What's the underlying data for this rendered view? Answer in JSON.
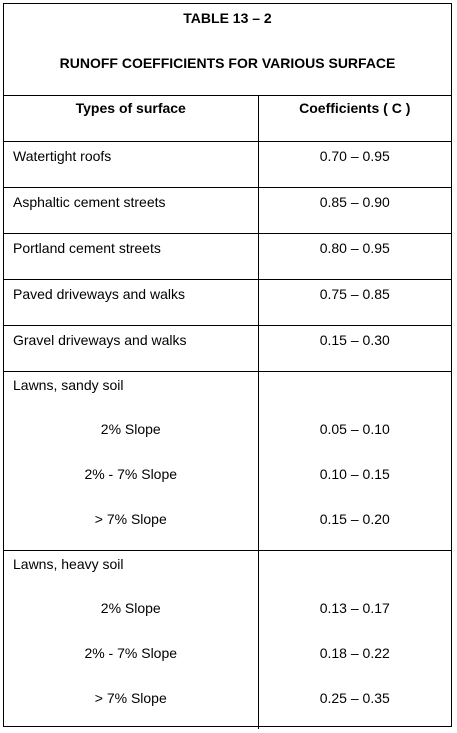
{
  "table": {
    "title": "TABLE 13 – 2",
    "subtitle": "RUNOFF COEFFICIENTS FOR VARIOUS SURFACE",
    "headers": {
      "surface": "Types of surface",
      "coefficient": "Coefficients ( C )"
    },
    "rows": [
      {
        "surface": "Watertight roofs",
        "coefficient": "0.70 – 0.95"
      },
      {
        "surface": "Asphaltic cement streets",
        "coefficient": "0.85 – 0.90"
      },
      {
        "surface": "Portland cement streets",
        "coefficient": "0.80 – 0.95"
      },
      {
        "surface": "Paved driveways and walks",
        "coefficient": "0.75 – 0.85"
      },
      {
        "surface": "Gravel driveways and walks",
        "coefficient": "0.15 – 0.30"
      }
    ],
    "groups": [
      {
        "label": "Lawns, sandy soil",
        "items": [
          {
            "slope": "2% Slope",
            "coefficient": "0.05 – 0.10"
          },
          {
            "slope": "2% - 7% Slope",
            "coefficient": "0.10 – 0.15"
          },
          {
            "slope": "> 7% Slope",
            "coefficient": "0.15 – 0.20"
          }
        ]
      },
      {
        "label": "Lawns, heavy soil",
        "items": [
          {
            "slope": "2% Slope",
            "coefficient": "0.13 – 0.17"
          },
          {
            "slope": "2% - 7% Slope",
            "coefficient": "0.18 – 0.22"
          },
          {
            "slope": "> 7% Slope",
            "coefficient": "0.25 – 0.35"
          }
        ]
      }
    ]
  }
}
